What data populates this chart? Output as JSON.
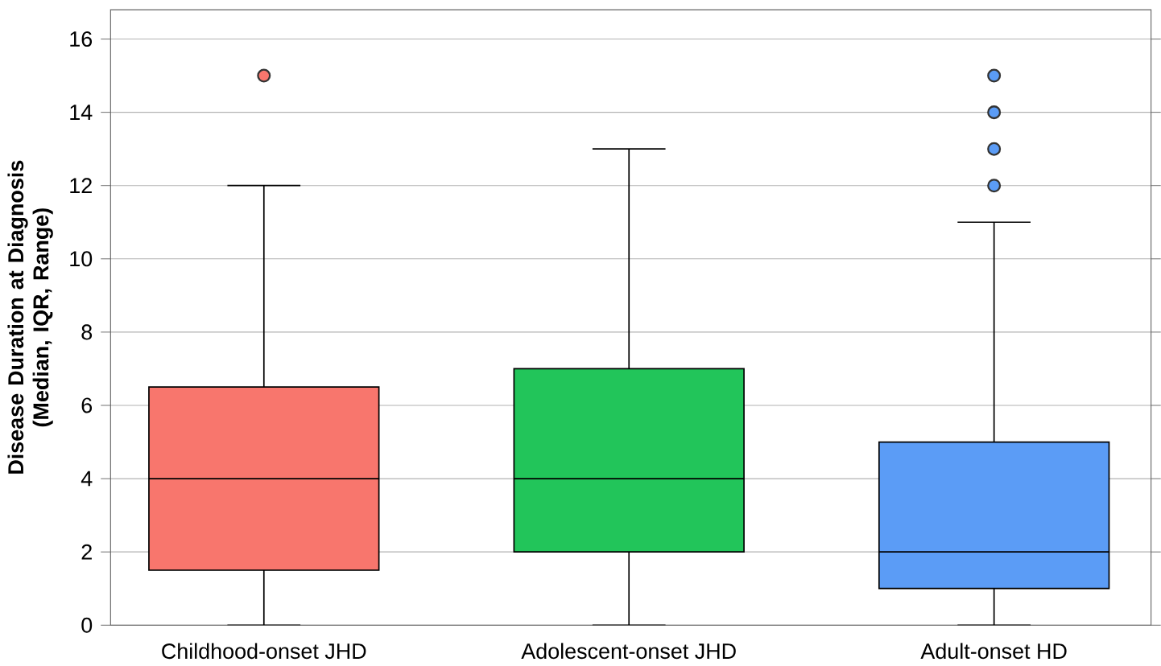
{
  "chart_data": {
    "type": "box",
    "ylabel": "Disease Duration at Diagnosis (Median, IQR, Range)",
    "categories": [
      "Childhood-onset JHD",
      "Adolescent-onset JHD",
      "Adult-onset HD"
    ],
    "boxes": [
      {
        "low": 0,
        "q1": 1.5,
        "median": 4,
        "q3": 6.5,
        "high": 12,
        "outliers": [
          15
        ]
      },
      {
        "low": 0,
        "q1": 2,
        "median": 4,
        "q3": 7,
        "high": 13
      },
      {
        "low": 0,
        "q1": 1,
        "median": 2,
        "q3": 5,
        "high": 11,
        "outliers": [
          12,
          13,
          14,
          15
        ]
      }
    ],
    "colors": [
      "#f8766d",
      "#22c55a",
      "#5b9cf6"
    ],
    "ylim": [
      0,
      16.8
    ],
    "yticks": [
      0,
      2,
      4,
      6,
      8,
      10,
      12,
      14,
      16
    ],
    "grid": "y",
    "marker": "circle"
  }
}
